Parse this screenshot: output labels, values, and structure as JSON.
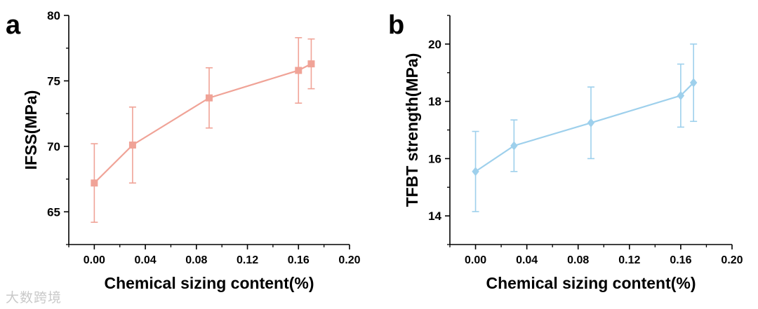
{
  "watermark": "大数跨境",
  "chart_data": [
    {
      "panel_label": "a",
      "type": "line",
      "xlabel": "Chemical sizing content(%)",
      "ylabel": "IFSS(MPa)",
      "xlim": [
        -0.02,
        0.2
      ],
      "ylim": [
        62.5,
        80
      ],
      "xticks": [
        0.0,
        0.04,
        0.08,
        0.12,
        0.16,
        0.2
      ],
      "xtick_labels": [
        "0.00",
        "0.04",
        "0.08",
        "0.12",
        "0.16",
        "0.20"
      ],
      "yticks": [
        65,
        70,
        75,
        80
      ],
      "ytick_labels": [
        "65",
        "70",
        "75",
        "80"
      ],
      "grid": false,
      "color": "#F0A397",
      "marker": "square",
      "series": [
        {
          "name": "IFSS",
          "x": [
            0.0,
            0.03,
            0.09,
            0.16,
            0.17
          ],
          "y": [
            67.2,
            70.1,
            73.7,
            75.8,
            76.3
          ],
          "err": [
            3.0,
            2.9,
            2.3,
            2.5,
            1.9
          ]
        }
      ]
    },
    {
      "panel_label": "b",
      "type": "line",
      "xlabel": "Chemical sizing content(%)",
      "ylabel": "TFBT strength(MPa)",
      "xlim": [
        -0.02,
        0.2
      ],
      "ylim": [
        13,
        21
      ],
      "xticks": [
        0.0,
        0.04,
        0.08,
        0.12,
        0.16,
        0.2
      ],
      "xtick_labels": [
        "0.00",
        "0.04",
        "0.08",
        "0.12",
        "0.16",
        "0.20"
      ],
      "yticks": [
        14,
        16,
        18,
        20
      ],
      "ytick_labels": [
        "14",
        "16",
        "18",
        "20"
      ],
      "grid": false,
      "color": "#9ED0EC",
      "marker": "diamond",
      "series": [
        {
          "name": "TFBT strength",
          "x": [
            0.0,
            0.03,
            0.09,
            0.16,
            0.17
          ],
          "y": [
            15.55,
            16.45,
            17.25,
            18.2,
            18.65
          ],
          "err": [
            1.4,
            0.9,
            1.25,
            1.1,
            1.35
          ]
        }
      ]
    }
  ]
}
